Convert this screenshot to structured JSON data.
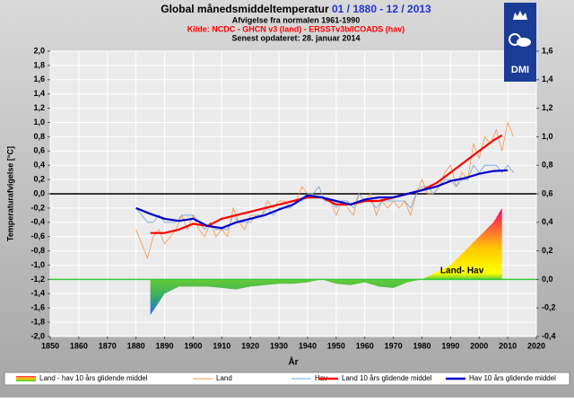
{
  "chart_data": {
    "type": "line",
    "title": "Global månedsmiddeltemperatur ",
    "title_period": "01 / 1880 - 12 / 2013",
    "subtitle": "Afvigelse fra normalen 1961-1990",
    "source": "Kilde: NCDC - GHCN v3 (land) - ERSSTv3b/ICOADS (hav)",
    "updated": "Senest opdateret:  28. januar 2014",
    "logo_text": "DMI",
    "annotation": "Land- Hav",
    "xlabel": "År",
    "ylabel": "Temperaturafvigelse [°C]",
    "xlim": [
      1850,
      2020
    ],
    "xticks": [
      1850,
      1860,
      1870,
      1880,
      1890,
      1900,
      1910,
      1920,
      1930,
      1940,
      1950,
      1960,
      1970,
      1980,
      1990,
      2000,
      2010,
      2020
    ],
    "ylim": [
      -2,
      2
    ],
    "yticks": [
      {
        "value": -2,
        "label": "-2,0"
      },
      {
        "value": -1.8,
        "label": "-1,8"
      },
      {
        "value": -1.6,
        "label": "-1,6"
      },
      {
        "value": -1.4,
        "label": "-1,4"
      },
      {
        "value": -1.2,
        "label": "-1,2"
      },
      {
        "value": -1,
        "label": "-1,0"
      },
      {
        "value": -0.8,
        "label": "-0,8"
      },
      {
        "value": -0.6,
        "label": "-0,6"
      },
      {
        "value": -0.4,
        "label": "-0,4"
      },
      {
        "value": -0.2,
        "label": "-0,2"
      },
      {
        "value": 0,
        "label": "0,0"
      },
      {
        "value": 0.2,
        "label": "0,2"
      },
      {
        "value": 0.4,
        "label": "0,4"
      },
      {
        "value": 0.6,
        "label": "0,6"
      },
      {
        "value": 0.8,
        "label": "0,8"
      },
      {
        "value": 1,
        "label": "1,0"
      },
      {
        "value": 1.2,
        "label": "1,2"
      },
      {
        "value": 1.4,
        "label": "1,4"
      },
      {
        "value": 1.6,
        "label": "1,6"
      },
      {
        "value": 1.8,
        "label": "1,8"
      },
      {
        "value": 2,
        "label": "2,0"
      }
    ],
    "y2lim": [
      -0.4,
      1.6
    ],
    "y2ticks": [
      {
        "value": -0.4,
        "label": "-0,4"
      },
      {
        "value": -0.2,
        "label": "-0,2"
      },
      {
        "value": 0,
        "label": "0,0"
      },
      {
        "value": 0.2,
        "label": "0,2"
      },
      {
        "value": 0.4,
        "label": "0,4"
      },
      {
        "value": 0.6,
        "label": "0,6"
      },
      {
        "value": 0.8,
        "label": "0,8"
      },
      {
        "value": 1,
        "label": "1,0"
      },
      {
        "value": 1.2,
        "label": "1,2"
      },
      {
        "value": 1.4,
        "label": "1,4"
      },
      {
        "value": 1.6,
        "label": "1,6"
      }
    ],
    "grid": true,
    "series": [
      {
        "name": "Land - hav 10 års glidende middel",
        "type": "area",
        "axis": "y2",
        "color": "#33cc33",
        "x": [
          1885,
          1890,
          1895,
          1900,
          1905,
          1910,
          1915,
          1920,
          1925,
          1930,
          1935,
          1940,
          1945,
          1950,
          1955,
          1960,
          1965,
          1970,
          1975,
          1980,
          1985,
          1990,
          1995,
          2000,
          2005,
          2008
        ],
        "values": [
          -0.25,
          -0.1,
          -0.05,
          -0.05,
          -0.05,
          -0.06,
          -0.07,
          -0.05,
          -0.04,
          -0.03,
          -0.03,
          -0.02,
          0.0,
          -0.03,
          -0.04,
          -0.02,
          -0.05,
          -0.06,
          -0.02,
          0.0,
          0.05,
          0.1,
          0.2,
          0.3,
          0.4,
          0.5
        ]
      },
      {
        "name": "Land",
        "color": "#f79646",
        "x": [
          1880,
          1882,
          1884,
          1886,
          1888,
          1890,
          1892,
          1894,
          1896,
          1898,
          1900,
          1902,
          1904,
          1906,
          1908,
          1910,
          1912,
          1914,
          1916,
          1918,
          1920,
          1922,
          1924,
          1926,
          1928,
          1930,
          1932,
          1934,
          1936,
          1938,
          1940,
          1942,
          1944,
          1946,
          1948,
          1950,
          1952,
          1954,
          1956,
          1958,
          1960,
          1962,
          1964,
          1966,
          1968,
          1970,
          1972,
          1974,
          1976,
          1978,
          1980,
          1982,
          1984,
          1986,
          1988,
          1990,
          1992,
          1994,
          1996,
          1998,
          2000,
          2002,
          2004,
          2006,
          2008,
          2010,
          2012
        ],
        "values": [
          -0.5,
          -0.7,
          -0.9,
          -0.6,
          -0.5,
          -0.7,
          -0.6,
          -0.5,
          -0.3,
          -0.5,
          -0.3,
          -0.5,
          -0.6,
          -0.4,
          -0.6,
          -0.5,
          -0.6,
          -0.2,
          -0.4,
          -0.5,
          -0.3,
          -0.3,
          -0.3,
          -0.1,
          -0.2,
          -0.1,
          -0.1,
          -0.2,
          -0.1,
          0.1,
          0.0,
          0.0,
          0.1,
          -0.1,
          -0.1,
          -0.3,
          -0.1,
          -0.2,
          -0.3,
          0.0,
          -0.1,
          0.0,
          -0.3,
          -0.1,
          -0.2,
          -0.1,
          -0.2,
          -0.1,
          -0.3,
          0.0,
          0.2,
          0.0,
          0.0,
          0.1,
          0.3,
          0.4,
          0.1,
          0.3,
          0.2,
          0.7,
          0.5,
          0.8,
          0.7,
          0.9,
          0.6,
          1.0,
          0.8
        ]
      },
      {
        "name": "Hav",
        "color": "#6fa8dc",
        "x": [
          1880,
          1882,
          1884,
          1886,
          1888,
          1890,
          1892,
          1894,
          1896,
          1898,
          1900,
          1902,
          1904,
          1906,
          1908,
          1910,
          1912,
          1914,
          1916,
          1918,
          1920,
          1922,
          1924,
          1926,
          1928,
          1930,
          1932,
          1934,
          1936,
          1938,
          1940,
          1942,
          1944,
          1946,
          1948,
          1950,
          1952,
          1954,
          1956,
          1958,
          1960,
          1962,
          1964,
          1966,
          1968,
          1970,
          1972,
          1974,
          1976,
          1978,
          1980,
          1982,
          1984,
          1986,
          1988,
          1990,
          1992,
          1994,
          1996,
          1998,
          2000,
          2002,
          2004,
          2006,
          2008,
          2010,
          2012
        ],
        "values": [
          -0.2,
          -0.3,
          -0.4,
          -0.4,
          -0.3,
          -0.4,
          -0.4,
          -0.4,
          -0.3,
          -0.3,
          -0.3,
          -0.4,
          -0.5,
          -0.4,
          -0.5,
          -0.5,
          -0.5,
          -0.3,
          -0.4,
          -0.4,
          -0.4,
          -0.3,
          -0.3,
          -0.2,
          -0.3,
          -0.2,
          -0.2,
          -0.2,
          -0.1,
          -0.1,
          0.0,
          0.0,
          0.1,
          -0.1,
          -0.1,
          -0.2,
          -0.1,
          -0.1,
          -0.2,
          0.0,
          -0.1,
          -0.1,
          -0.2,
          -0.1,
          -0.1,
          -0.1,
          -0.1,
          -0.1,
          -0.2,
          0.0,
          0.1,
          0.1,
          0.0,
          0.1,
          0.2,
          0.2,
          0.1,
          0.2,
          0.2,
          0.4,
          0.3,
          0.4,
          0.4,
          0.4,
          0.3,
          0.4,
          0.3
        ]
      },
      {
        "name": "Land 10 års glidende middel",
        "color": "#ff0000",
        "x": [
          1885,
          1890,
          1895,
          1900,
          1905,
          1910,
          1915,
          1920,
          1925,
          1930,
          1935,
          1940,
          1945,
          1950,
          1955,
          1960,
          1965,
          1970,
          1975,
          1980,
          1985,
          1990,
          1995,
          2000,
          2005,
          2008
        ],
        "values": [
          -0.55,
          -0.55,
          -0.5,
          -0.42,
          -0.45,
          -0.35,
          -0.3,
          -0.25,
          -0.2,
          -0.15,
          -0.1,
          -0.05,
          -0.05,
          -0.15,
          -0.15,
          -0.1,
          -0.1,
          -0.05,
          0.0,
          0.05,
          0.15,
          0.3,
          0.45,
          0.6,
          0.75,
          0.82
        ]
      },
      {
        "name": "Hav 10 års glidende middel",
        "color": "#0000cc",
        "x": [
          1880,
          1885,
          1890,
          1895,
          1900,
          1905,
          1910,
          1915,
          1920,
          1925,
          1930,
          1935,
          1940,
          1945,
          1950,
          1955,
          1960,
          1965,
          1970,
          1975,
          1980,
          1985,
          1990,
          1995,
          2000,
          2005,
          2010
        ],
        "values": [
          -0.2,
          -0.28,
          -0.35,
          -0.38,
          -0.35,
          -0.45,
          -0.48,
          -0.4,
          -0.35,
          -0.3,
          -0.22,
          -0.15,
          -0.02,
          -0.05,
          -0.1,
          -0.15,
          -0.08,
          -0.05,
          -0.05,
          0.0,
          0.05,
          0.1,
          0.18,
          0.22,
          0.28,
          0.32,
          0.33
        ]
      }
    ]
  }
}
